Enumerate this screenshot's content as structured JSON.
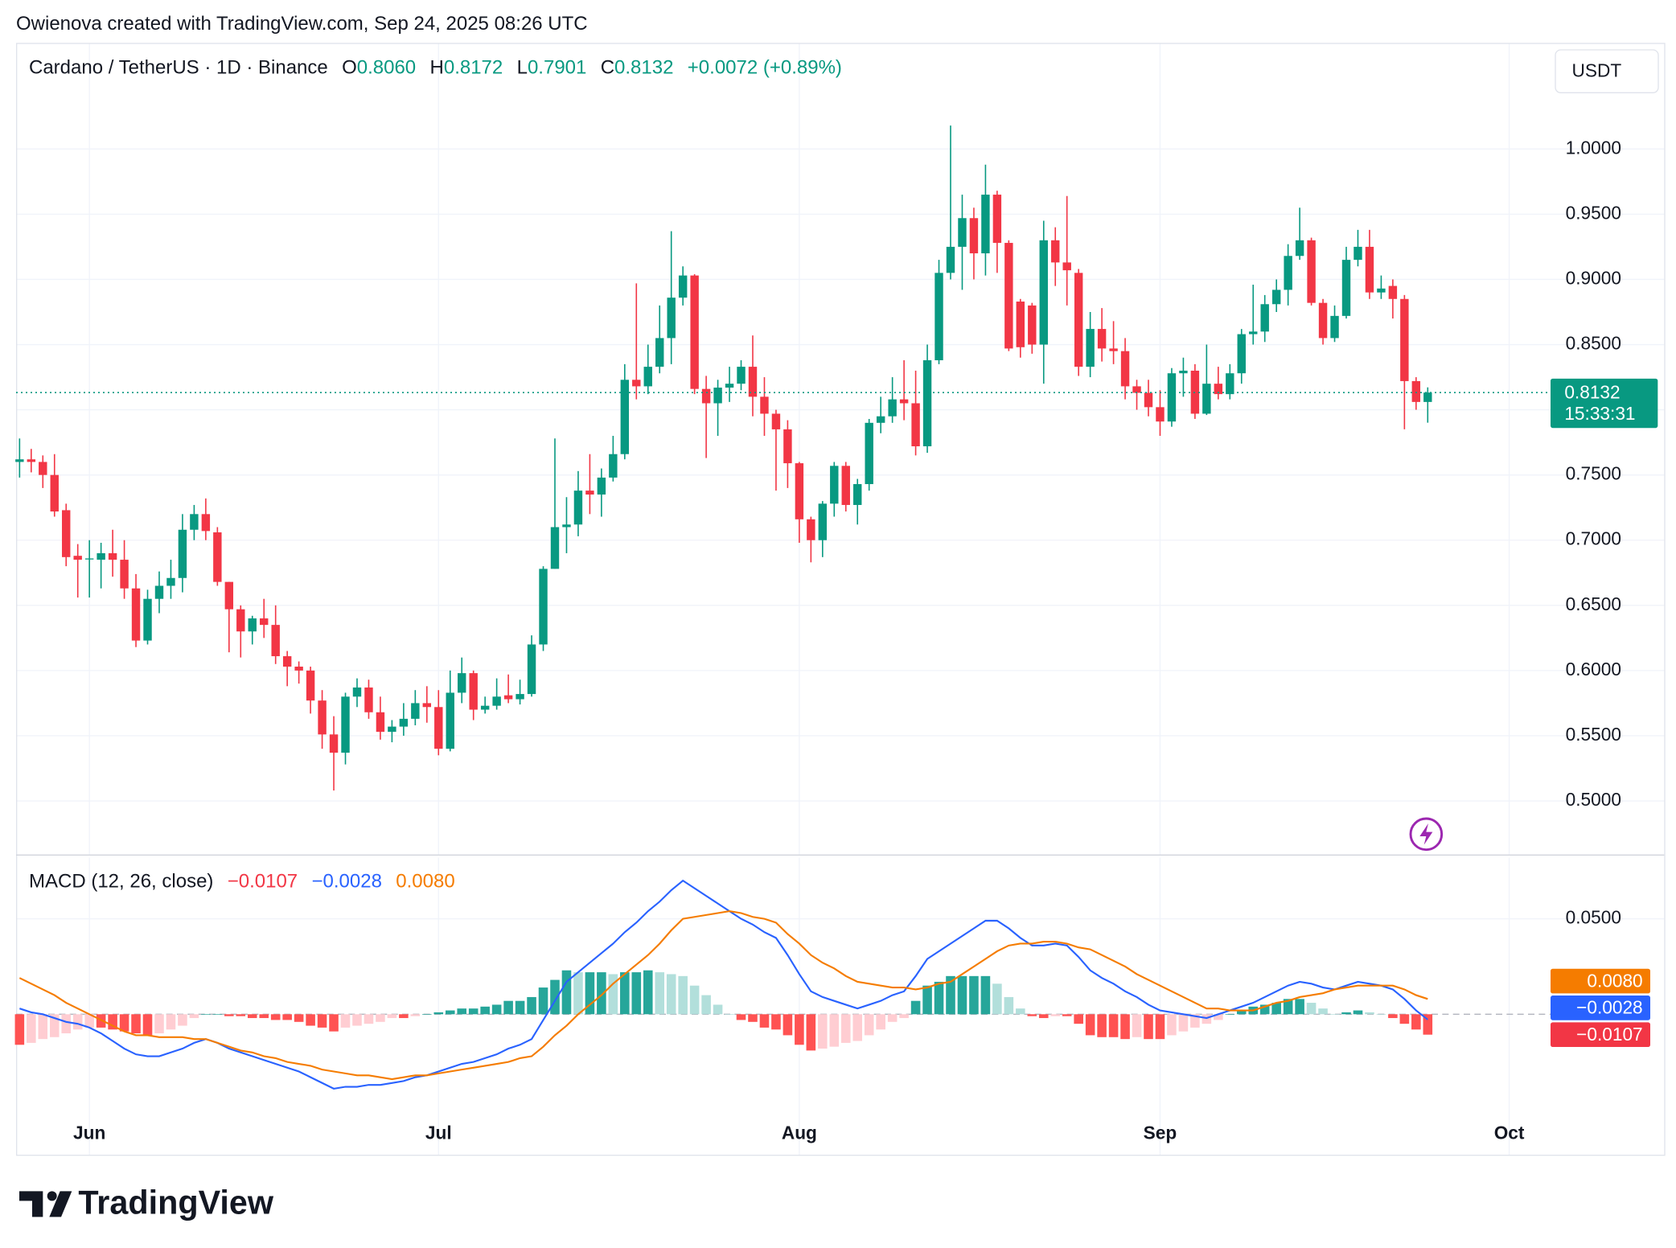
{
  "attribution": "Owienova created with TradingView.com, Sep 24, 2025 08:26 UTC",
  "branding": "TradingView",
  "chart_data": [
    {
      "type": "candlestick",
      "header": {
        "symbol": "Cardano / TetherUS · 1D · Binance",
        "fields": [
          {
            "key": "O",
            "text": "0.8060"
          },
          {
            "key": "H",
            "text": "0.8172"
          },
          {
            "key": "L",
            "text": "0.7901"
          },
          {
            "key": "C",
            "text": "0.8132"
          }
        ],
        "change": "+0.0072 (+0.89%)"
      },
      "currency": "USDT",
      "countdown": "15:33:31",
      "up_color": "#089981",
      "down_color": "#f23645",
      "xlim": [
        -0.3,
        131
      ],
      "xticks": [
        {
          "value": 6,
          "label": "Jun"
        },
        {
          "value": 36,
          "label": "Jul"
        },
        {
          "value": 67,
          "label": "Aug"
        },
        {
          "value": 98,
          "label": "Sep"
        },
        {
          "value": 128,
          "label": "Oct"
        }
      ],
      "ylim": [
        0.4589,
        1.0814
      ],
      "yticks": [
        {
          "value": 0.5,
          "label": "0.5000"
        },
        {
          "value": 0.55,
          "label": "0.5500"
        },
        {
          "value": 0.6,
          "label": "0.6000"
        },
        {
          "value": 0.65,
          "label": "0.6500"
        },
        {
          "value": 0.7,
          "label": "0.7000"
        },
        {
          "value": 0.75,
          "label": "0.7500"
        },
        {
          "value": 0.8,
          "label": "0.8000"
        },
        {
          "value": 0.85,
          "label": "0.8500"
        },
        {
          "value": 0.9,
          "label": "0.9000"
        },
        {
          "value": 0.95,
          "label": "0.9500"
        },
        {
          "value": 1.0,
          "label": "1.0000"
        }
      ],
      "grid": true,
      "open": [
        0.76,
        0.762,
        0.76,
        0.75,
        0.723,
        0.688,
        0.686,
        0.685,
        0.69,
        0.685,
        0.663,
        0.623,
        0.655,
        0.665,
        0.671,
        0.708,
        0.72,
        0.706,
        0.668,
        0.647,
        0.63,
        0.64,
        0.635,
        0.611,
        0.603,
        0.6,
        0.577,
        0.551,
        0.537,
        0.58,
        0.587,
        0.568,
        0.553,
        0.557,
        0.563,
        0.575,
        0.572,
        0.54,
        0.583,
        0.598,
        0.57,
        0.573,
        0.581,
        0.578,
        0.582,
        0.62,
        0.678,
        0.71,
        0.712,
        0.738,
        0.735,
        0.748,
        0.766,
        0.823,
        0.818,
        0.833,
        0.855,
        0.886,
        0.903,
        0.816,
        0.805,
        0.817,
        0.82,
        0.833,
        0.81,
        0.797,
        0.785,
        0.759,
        0.716,
        0.7,
        0.728,
        0.757,
        0.727,
        0.743,
        0.79,
        0.795,
        0.808,
        0.805,
        0.772,
        0.838,
        0.905,
        0.925,
        0.947,
        0.92,
        0.965,
        0.928,
        0.883,
        0.88,
        0.85,
        0.93,
        0.913,
        0.905,
        0.833,
        0.862,
        0.847,
        0.845,
        0.818,
        0.813,
        0.802,
        0.791,
        0.828,
        0.83,
        0.797,
        0.82,
        0.812,
        0.828,
        0.858,
        0.86,
        0.881,
        0.892,
        0.918,
        0.93,
        0.882,
        0.855,
        0.872,
        0.915,
        0.925,
        0.89,
        0.895,
        0.885,
        0.822,
        0.806
      ],
      "high": [
        0.778,
        0.77,
        0.765,
        0.766,
        0.728,
        0.697,
        0.7,
        0.698,
        0.708,
        0.7,
        0.674,
        0.662,
        0.676,
        0.685,
        0.72,
        0.727,
        0.732,
        0.71,
        0.668,
        0.65,
        0.642,
        0.655,
        0.65,
        0.615,
        0.607,
        0.603,
        0.585,
        0.565,
        0.583,
        0.594,
        0.593,
        0.58,
        0.562,
        0.575,
        0.585,
        0.588,
        0.585,
        0.6,
        0.61,
        0.6,
        0.58,
        0.594,
        0.597,
        0.593,
        0.627,
        0.68,
        0.778,
        0.733,
        0.753,
        0.766,
        0.755,
        0.78,
        0.835,
        0.897,
        0.85,
        0.88,
        0.937,
        0.91,
        0.904,
        0.826,
        0.823,
        0.833,
        0.838,
        0.857,
        0.825,
        0.8,
        0.792,
        0.76,
        0.718,
        0.73,
        0.76,
        0.76,
        0.747,
        0.793,
        0.81,
        0.825,
        0.838,
        0.83,
        0.85,
        0.915,
        1.018,
        0.965,
        0.955,
        0.988,
        0.968,
        0.93,
        0.885,
        0.882,
        0.945,
        0.94,
        0.964,
        0.908,
        0.875,
        0.878,
        0.868,
        0.855,
        0.823,
        0.823,
        0.815,
        0.832,
        0.84,
        0.835,
        0.85,
        0.833,
        0.835,
        0.862,
        0.896,
        0.888,
        0.9,
        0.927,
        0.955,
        0.932,
        0.885,
        0.88,
        0.925,
        0.938,
        0.938,
        0.903,
        0.9,
        0.888,
        0.825,
        0.8172
      ],
      "low": [
        0.748,
        0.752,
        0.74,
        0.718,
        0.68,
        0.656,
        0.656,
        0.663,
        0.672,
        0.655,
        0.618,
        0.62,
        0.644,
        0.655,
        0.66,
        0.7,
        0.7,
        0.665,
        0.614,
        0.61,
        0.62,
        0.625,
        0.605,
        0.588,
        0.59,
        0.567,
        0.54,
        0.508,
        0.528,
        0.572,
        0.563,
        0.547,
        0.545,
        0.55,
        0.558,
        0.56,
        0.535,
        0.538,
        0.575,
        0.562,
        0.567,
        0.57,
        0.575,
        0.574,
        0.58,
        0.615,
        0.678,
        0.69,
        0.703,
        0.72,
        0.718,
        0.745,
        0.762,
        0.808,
        0.812,
        0.828,
        0.835,
        0.88,
        0.812,
        0.763,
        0.78,
        0.806,
        0.815,
        0.795,
        0.78,
        0.738,
        0.74,
        0.698,
        0.683,
        0.687,
        0.718,
        0.722,
        0.712,
        0.738,
        0.782,
        0.79,
        0.792,
        0.765,
        0.767,
        0.835,
        0.9,
        0.892,
        0.9,
        0.903,
        0.905,
        0.845,
        0.84,
        0.843,
        0.82,
        0.895,
        0.88,
        0.826,
        0.825,
        0.837,
        0.835,
        0.808,
        0.8,
        0.795,
        0.78,
        0.787,
        0.81,
        0.793,
        0.796,
        0.808,
        0.808,
        0.82,
        0.85,
        0.852,
        0.875,
        0.88,
        0.915,
        0.88,
        0.85,
        0.852,
        0.87,
        0.91,
        0.885,
        0.885,
        0.87,
        0.785,
        0.8,
        0.7901
      ],
      "close": [
        0.762,
        0.76,
        0.75,
        0.722,
        0.687,
        0.685,
        0.686,
        0.69,
        0.685,
        0.663,
        0.623,
        0.655,
        0.665,
        0.671,
        0.708,
        0.72,
        0.707,
        0.668,
        0.647,
        0.63,
        0.64,
        0.635,
        0.611,
        0.603,
        0.6,
        0.577,
        0.551,
        0.537,
        0.58,
        0.587,
        0.568,
        0.553,
        0.557,
        0.563,
        0.575,
        0.572,
        0.54,
        0.583,
        0.598,
        0.57,
        0.573,
        0.58,
        0.578,
        0.582,
        0.62,
        0.678,
        0.71,
        0.712,
        0.738,
        0.735,
        0.748,
        0.766,
        0.823,
        0.818,
        0.833,
        0.855,
        0.886,
        0.903,
        0.816,
        0.805,
        0.817,
        0.82,
        0.833,
        0.81,
        0.797,
        0.785,
        0.759,
        0.716,
        0.7,
        0.728,
        0.757,
        0.727,
        0.743,
        0.79,
        0.795,
        0.808,
        0.805,
        0.772,
        0.838,
        0.905,
        0.925,
        0.947,
        0.92,
        0.965,
        0.928,
        0.847,
        0.848,
        0.85,
        0.93,
        0.913,
        0.907,
        0.833,
        0.862,
        0.847,
        0.845,
        0.818,
        0.813,
        0.802,
        0.791,
        0.828,
        0.83,
        0.797,
        0.82,
        0.812,
        0.828,
        0.858,
        0.86,
        0.881,
        0.892,
        0.918,
        0.93,
        0.882,
        0.855,
        0.872,
        0.915,
        0.925,
        0.89,
        0.893,
        0.885,
        0.822,
        0.806,
        0.8132
      ]
    },
    {
      "type": "macd",
      "title": "MACD (12, 26, close)",
      "ylim": [
        -0.0545,
        0.082
      ],
      "yticks": [
        {
          "value": 0.05,
          "label": "0.0500"
        }
      ],
      "bar_colors": {
        "up_rising": "#26a69a",
        "up_falling": "#b2dfdb",
        "down_falling": "#ff5252",
        "down_rising": "#ffcdd2"
      },
      "series": [
        {
          "kind": "histogram",
          "color": "#f23645",
          "label": "−0.0107",
          "values": [
            -0.016,
            -0.015,
            -0.013,
            -0.012,
            -0.01,
            -0.008,
            -0.007,
            -0.007,
            -0.008,
            -0.009,
            -0.01,
            -0.011,
            -0.01,
            -0.008,
            -0.006,
            -0.002,
            0.0,
            0.0,
            -0.001,
            -0.001,
            -0.002,
            -0.002,
            -0.003,
            -0.003,
            -0.004,
            -0.006,
            -0.007,
            -0.009,
            -0.007,
            -0.006,
            -0.005,
            -0.004,
            -0.002,
            -0.002,
            -0.001,
            0.0,
            0.001,
            0.002,
            0.003,
            0.003,
            0.004,
            0.005,
            0.007,
            0.007,
            0.009,
            0.014,
            0.018,
            0.023,
            0.022,
            0.022,
            0.022,
            0.021,
            0.022,
            0.022,
            0.023,
            0.022,
            0.021,
            0.02,
            0.015,
            0.01,
            0.005,
            0.0,
            -0.003,
            -0.004,
            -0.007,
            -0.008,
            -0.011,
            -0.016,
            -0.019,
            -0.018,
            -0.017,
            -0.015,
            -0.014,
            -0.011,
            -0.008,
            -0.004,
            -0.002,
            0.007,
            0.015,
            0.017,
            0.02,
            0.02,
            0.02,
            0.02,
            0.016,
            0.009,
            0.003,
            -0.001,
            -0.002,
            -0.001,
            -0.001,
            -0.005,
            -0.011,
            -0.012,
            -0.012,
            -0.013,
            -0.012,
            -0.013,
            -0.013,
            -0.011,
            -0.009,
            -0.007,
            -0.005,
            -0.003,
            0.0,
            0.002,
            0.004,
            0.005,
            0.006,
            0.008,
            0.008,
            0.006,
            0.003,
            0.0,
            0.001,
            0.002,
            0.001,
            0.0,
            -0.002,
            -0.005,
            -0.008,
            -0.0107
          ]
        },
        {
          "kind": "line",
          "color": "#2962ff",
          "label": "−0.0028",
          "values": [
            0.003,
            0.001,
            0.0,
            -0.002,
            -0.004,
            -0.005,
            -0.007,
            -0.01,
            -0.014,
            -0.018,
            -0.021,
            -0.022,
            -0.022,
            -0.02,
            -0.018,
            -0.015,
            -0.013,
            -0.015,
            -0.018,
            -0.02,
            -0.022,
            -0.024,
            -0.026,
            -0.028,
            -0.03,
            -0.033,
            -0.036,
            -0.039,
            -0.038,
            -0.038,
            -0.037,
            -0.037,
            -0.036,
            -0.035,
            -0.033,
            -0.032,
            -0.03,
            -0.028,
            -0.026,
            -0.025,
            -0.023,
            -0.021,
            -0.018,
            -0.016,
            -0.013,
            -0.003,
            0.007,
            0.017,
            0.022,
            0.027,
            0.032,
            0.037,
            0.043,
            0.048,
            0.054,
            0.059,
            0.065,
            0.07,
            0.066,
            0.062,
            0.058,
            0.054,
            0.05,
            0.047,
            0.043,
            0.04,
            0.031,
            0.021,
            0.012,
            0.009,
            0.007,
            0.005,
            0.003,
            0.005,
            0.007,
            0.01,
            0.012,
            0.02,
            0.029,
            0.033,
            0.037,
            0.041,
            0.045,
            0.049,
            0.049,
            0.045,
            0.04,
            0.036,
            0.036,
            0.037,
            0.036,
            0.03,
            0.023,
            0.019,
            0.016,
            0.012,
            0.009,
            0.005,
            0.002,
            0.001,
            0.0,
            -0.001,
            -0.002,
            0.0,
            0.002,
            0.004,
            0.006,
            0.009,
            0.012,
            0.015,
            0.017,
            0.016,
            0.014,
            0.013,
            0.015,
            0.017,
            0.016,
            0.015,
            0.013,
            0.008,
            0.002,
            -0.0028
          ]
        },
        {
          "kind": "line",
          "color": "#f57c00",
          "label": "0.0080",
          "values": [
            0.019,
            0.016,
            0.013,
            0.01,
            0.006,
            0.003,
            0.0,
            -0.003,
            -0.006,
            -0.009,
            -0.011,
            -0.011,
            -0.012,
            -0.012,
            -0.012,
            -0.013,
            -0.013,
            -0.015,
            -0.017,
            -0.019,
            -0.02,
            -0.022,
            -0.023,
            -0.025,
            -0.026,
            -0.027,
            -0.029,
            -0.03,
            -0.031,
            -0.032,
            -0.032,
            -0.033,
            -0.034,
            -0.033,
            -0.032,
            -0.032,
            -0.031,
            -0.03,
            -0.029,
            -0.028,
            -0.027,
            -0.026,
            -0.025,
            -0.023,
            -0.022,
            -0.017,
            -0.011,
            -0.006,
            0.0,
            0.005,
            0.01,
            0.016,
            0.021,
            0.026,
            0.031,
            0.037,
            0.044,
            0.05,
            0.051,
            0.052,
            0.053,
            0.054,
            0.053,
            0.051,
            0.05,
            0.048,
            0.042,
            0.037,
            0.031,
            0.027,
            0.024,
            0.02,
            0.017,
            0.016,
            0.015,
            0.014,
            0.014,
            0.013,
            0.014,
            0.016,
            0.017,
            0.021,
            0.025,
            0.029,
            0.033,
            0.036,
            0.037,
            0.037,
            0.038,
            0.038,
            0.037,
            0.035,
            0.034,
            0.031,
            0.028,
            0.025,
            0.021,
            0.018,
            0.015,
            0.012,
            0.009,
            0.006,
            0.003,
            0.003,
            0.002,
            0.002,
            0.002,
            0.004,
            0.006,
            0.007,
            0.009,
            0.01,
            0.011,
            0.013,
            0.014,
            0.015,
            0.015,
            0.015,
            0.015,
            0.013,
            0.01,
            0.008
          ]
        }
      ]
    }
  ]
}
